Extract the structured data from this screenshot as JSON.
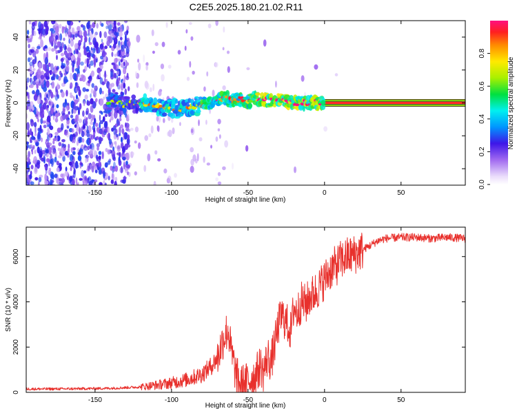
{
  "title": "C2E5.2025.180.21.02.R11",
  "colors": {
    "snr_line": "#e8302c",
    "ridge": "#ff2a2a",
    "frame": "#000000"
  },
  "chart_data": [
    {
      "id": "spectrogram",
      "type": "heatmap",
      "xlabel": "Height of straight line (km)",
      "ylabel": "Frequency (Hz)",
      "xlim": [
        -195,
        92
      ],
      "ylim": [
        -50,
        50
      ],
      "xticks": [
        -150,
        -100,
        -50,
        0,
        50
      ],
      "xtick_labels": [
        "-150",
        "-100",
        "-50",
        "0",
        "50"
      ],
      "yticks": [
        -40,
        -20,
        0,
        20,
        40
      ],
      "ytick_labels": [
        "-40",
        "-20",
        "0",
        "20",
        "40"
      ],
      "colorbar": {
        "label": "Normalized spectral amplitude",
        "range": [
          0,
          1
        ],
        "ticks": [
          0,
          0.2,
          0.4,
          0.6,
          0.8
        ],
        "tick_labels": [
          "0.0",
          "0.2",
          "0.4",
          "0.6",
          "0.8"
        ]
      },
      "ridge": {
        "description_free": true,
        "points": [
          [
            -140,
            0
          ],
          [
            -130,
            -1
          ],
          [
            -120,
            0
          ],
          [
            -110,
            -2
          ],
          [
            -100,
            -3
          ],
          [
            -95,
            -4
          ],
          [
            -90,
            -3
          ],
          [
            -85,
            -2
          ],
          [
            -80,
            -1
          ],
          [
            -75,
            0
          ],
          [
            -70,
            2
          ],
          [
            -65,
            3
          ],
          [
            -60,
            1
          ],
          [
            -55,
            2
          ],
          [
            -50,
            1
          ],
          [
            -45,
            3
          ],
          [
            -40,
            2
          ],
          [
            -35,
            1
          ],
          [
            -30,
            2
          ],
          [
            -25,
            1
          ],
          [
            -20,
            0
          ],
          [
            -15,
            0
          ],
          [
            -10,
            0
          ],
          [
            -5,
            0
          ],
          [
            0,
            0
          ],
          [
            10,
            0
          ],
          [
            30,
            0
          ],
          [
            50,
            0
          ],
          [
            70,
            0
          ],
          [
            90,
            0
          ]
        ]
      }
    },
    {
      "id": "snr",
      "type": "line",
      "xlabel": "Height of straight line (km)",
      "ylabel": "SNR (10 * v/v)",
      "xlim": [
        -195,
        92
      ],
      "ylim": [
        0,
        7300
      ],
      "xticks": [
        -150,
        -100,
        -50,
        0,
        50
      ],
      "xtick_labels": [
        "-150",
        "-100",
        "-50",
        "0",
        "50"
      ],
      "yticks": [
        0,
        2000,
        4000,
        6000
      ],
      "ytick_labels": [
        "0",
        "2000",
        "4000",
        "6000"
      ],
      "series": [
        {
          "x": [
            -195,
            -180,
            -160,
            -140,
            -120,
            -110,
            -100,
            -90,
            -80,
            -75,
            -70,
            -66,
            -63,
            -61,
            -58,
            -55,
            -52,
            -48,
            -45,
            -42,
            -40,
            -37,
            -35,
            -32,
            -30,
            -28,
            -25,
            -22,
            -20,
            -18,
            -15,
            -12,
            -10,
            -8,
            -5,
            -3,
            0,
            3,
            5,
            8,
            10,
            15,
            20,
            25,
            30,
            35,
            40,
            50,
            60,
            70,
            80,
            92
          ],
          "y": [
            150,
            150,
            160,
            180,
            240,
            320,
            420,
            560,
            800,
            1100,
            1500,
            2400,
            2800,
            1800,
            800,
            350,
            400,
            600,
            750,
            1200,
            900,
            1600,
            1300,
            2300,
            3000,
            3400,
            3100,
            2700,
            3800,
            3500,
            4000,
            3900,
            4200,
            4300,
            4500,
            4700,
            5000,
            5300,
            5500,
            5600,
            5800,
            6000,
            6100,
            6300,
            6500,
            6700,
            6800,
            6850,
            6850,
            6800,
            6850,
            6800
          ]
        }
      ]
    }
  ]
}
